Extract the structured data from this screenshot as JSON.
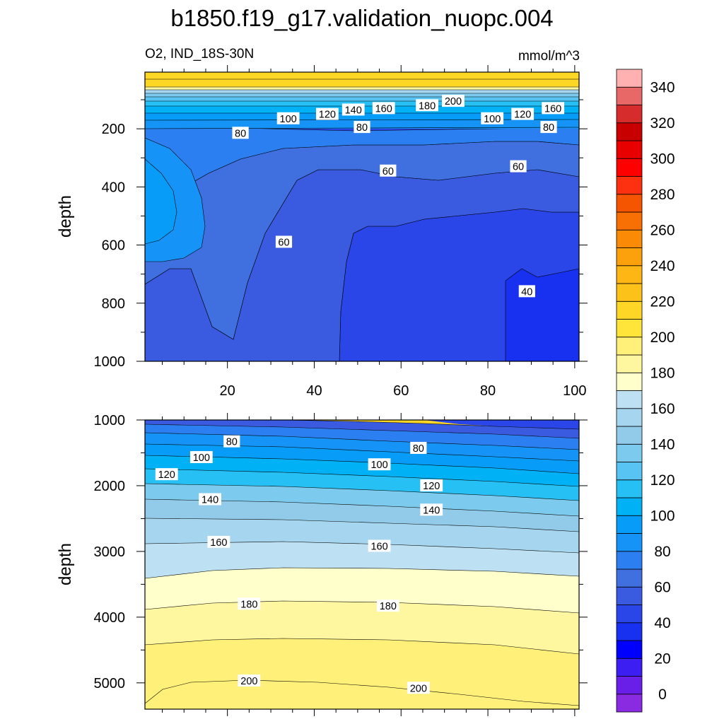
{
  "chart_data": [
    {
      "type": "heatmap",
      "panel": "upper",
      "title": "b1850.f19_g17.validation_nuopc.004",
      "left_label": "O2, IND_18S-30N",
      "right_label": "mmol/m^3",
      "xlabel": "",
      "ylabel": "depth",
      "xlim": [
        1,
        101
      ],
      "ylim": [
        1000,
        5
      ],
      "xticks": [
        20,
        40,
        60,
        80,
        100
      ],
      "yticks": [
        200,
        400,
        600,
        800,
        1000
      ],
      "grid": false,
      "contour_labels": [
        {
          "text": "200",
          "x": 72,
          "y": 105
        },
        {
          "text": "180",
          "x": 66,
          "y": 120
        },
        {
          "text": "160",
          "x": 56,
          "y": 130
        },
        {
          "text": "160",
          "x": 95,
          "y": 130
        },
        {
          "text": "140",
          "x": 49,
          "y": 135
        },
        {
          "text": "120",
          "x": 43,
          "y": 150
        },
        {
          "text": "120",
          "x": 88,
          "y": 150
        },
        {
          "text": "100",
          "x": 34,
          "y": 165
        },
        {
          "text": "100",
          "x": 81,
          "y": 165
        },
        {
          "text": "80",
          "x": 23,
          "y": 215
        },
        {
          "text": "80",
          "x": 51,
          "y": 195
        },
        {
          "text": "80",
          "x": 94,
          "y": 195
        },
        {
          "text": "60",
          "x": 57,
          "y": 345
        },
        {
          "text": "60",
          "x": 87,
          "y": 330
        },
        {
          "text": "60",
          "x": 33,
          "y": 590
        },
        {
          "text": "40",
          "x": 89,
          "y": 760
        }
      ]
    },
    {
      "type": "heatmap",
      "panel": "lower",
      "xlabel": "",
      "ylabel": "depth",
      "xlim": [
        1,
        101
      ],
      "ylim": [
        5400,
        1000
      ],
      "yticks": [
        1000,
        2000,
        3000,
        4000,
        5000
      ],
      "grid": false,
      "contour_labels": [
        {
          "text": "80",
          "x": 21,
          "y": 1330
        },
        {
          "text": "80",
          "x": 64,
          "y": 1430
        },
        {
          "text": "100",
          "x": 14,
          "y": 1570
        },
        {
          "text": "100",
          "x": 55,
          "y": 1680
        },
        {
          "text": "120",
          "x": 6,
          "y": 1830
        },
        {
          "text": "120",
          "x": 67,
          "y": 2000
        },
        {
          "text": "140",
          "x": 16,
          "y": 2210
        },
        {
          "text": "140",
          "x": 67,
          "y": 2370
        },
        {
          "text": "160",
          "x": 18,
          "y": 2860
        },
        {
          "text": "160",
          "x": 55,
          "y": 2920
        },
        {
          "text": "180",
          "x": 25,
          "y": 3800
        },
        {
          "text": "180",
          "x": 57,
          "y": 3830
        },
        {
          "text": "200",
          "x": 25,
          "y": 4970
        },
        {
          "text": "200",
          "x": 64,
          "y": 5080
        }
      ]
    }
  ],
  "colorbar": {
    "labels": [
      "0",
      "20",
      "40",
      "60",
      "80",
      "100",
      "120",
      "140",
      "160",
      "180",
      "200",
      "220",
      "240",
      "260",
      "280",
      "300",
      "320",
      "340"
    ],
    "colors": [
      "#8a2be2",
      "#6a1fe8",
      "#3c1ef2",
      "#0000ff",
      "#1830f0",
      "#2a45e8",
      "#3a5ae0",
      "#4070e0",
      "#2b7ff0",
      "#1593f7",
      "#069cf8",
      "#00b2f5",
      "#27c0f5",
      "#58c4f3",
      "#7ccbee",
      "#92cbea",
      "#a6d5ef",
      "#bde0f2",
      "#ffffcc",
      "#fff7a0",
      "#fff07a",
      "#ffe53a",
      "#fed626",
      "#fdc21a",
      "#fdb614",
      "#fca10c",
      "#fb8a06",
      "#f87004",
      "#f55400",
      "#fd3010",
      "#ff0000",
      "#e80000",
      "#c80000",
      "#d72c2c",
      "#e86868",
      "#ffb0b0"
    ]
  }
}
